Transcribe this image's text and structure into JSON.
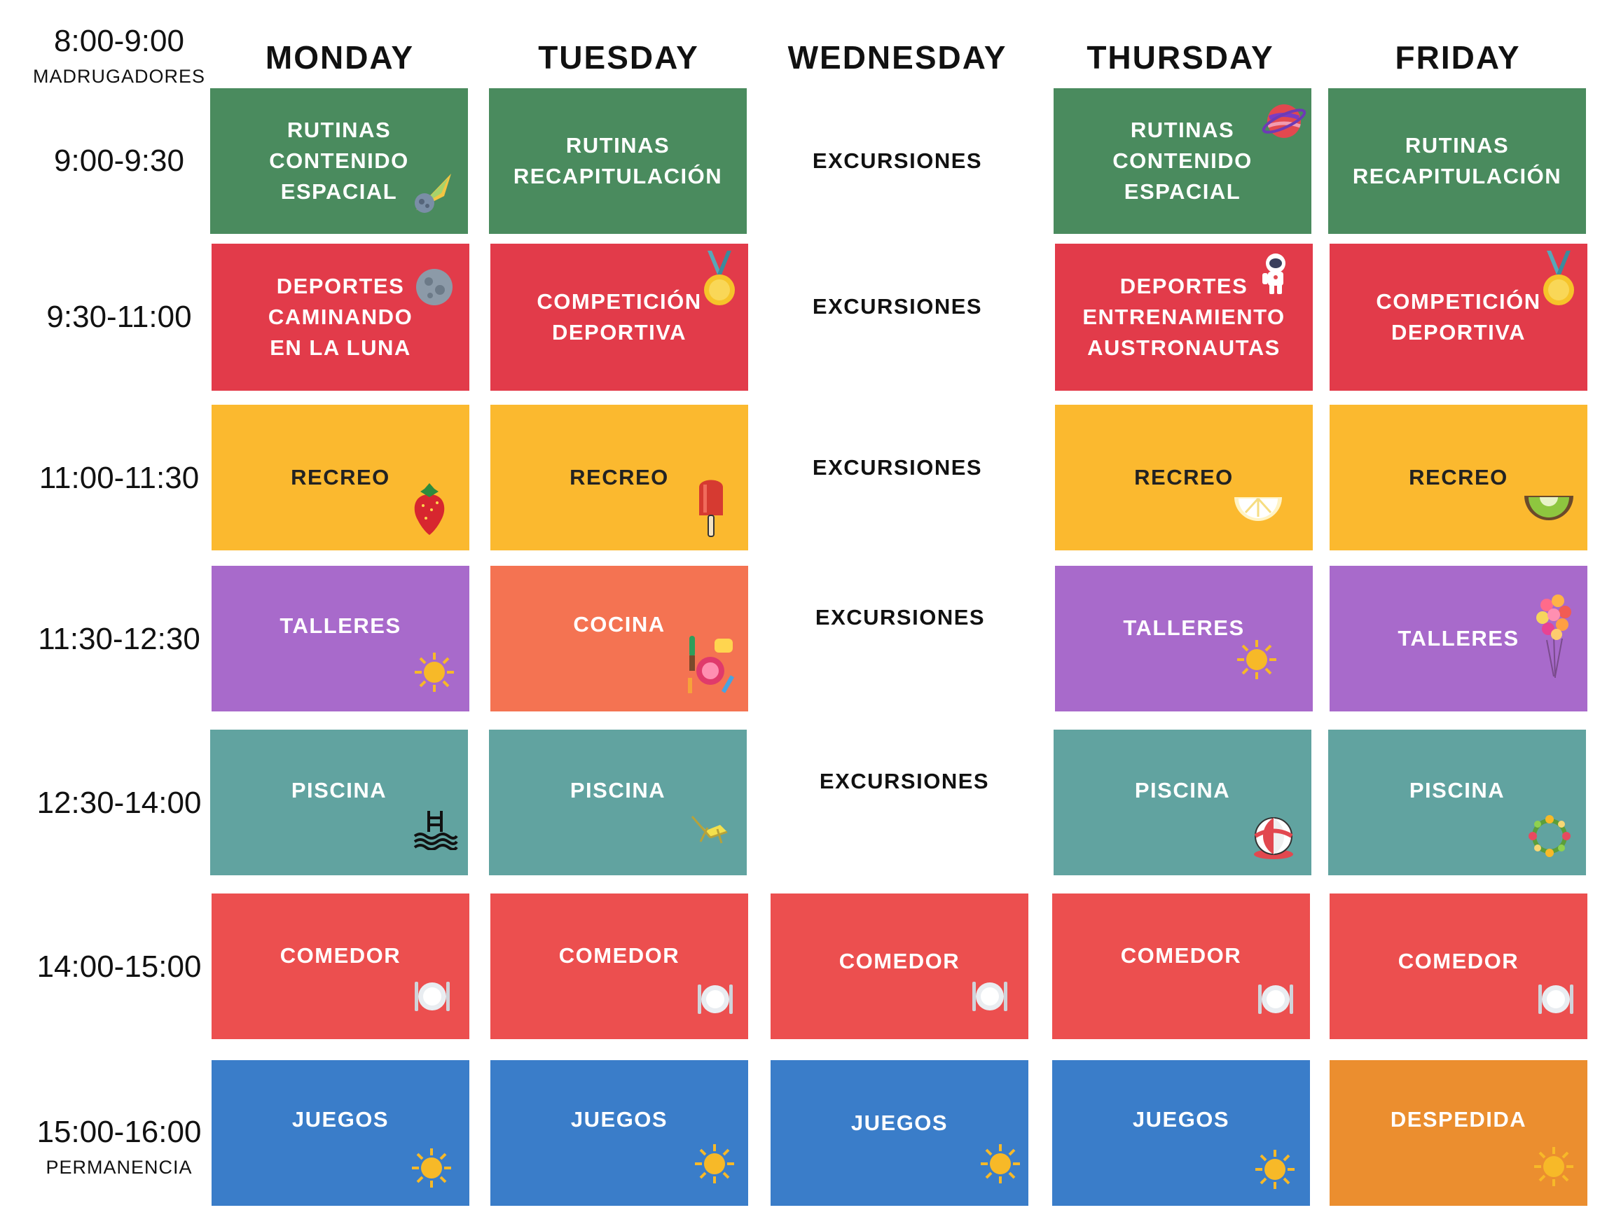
{
  "header": {
    "early_time": "8:00-9:00",
    "early_label": "MADRUGADORES",
    "days": [
      "MONDAY",
      "TUESDAY",
      "WEDNESDAY",
      "THURSDAY",
      "FRIDAY"
    ]
  },
  "times": [
    {
      "time": "9:00-9:30",
      "sub": ""
    },
    {
      "time": "9:30-11:00",
      "sub": ""
    },
    {
      "time": "11:00-11:30",
      "sub": ""
    },
    {
      "time": "11:30-12:30",
      "sub": ""
    },
    {
      "time": "12:30-14:00",
      "sub": ""
    },
    {
      "time": "14:00-15:00",
      "sub": ""
    },
    {
      "time": "15:00-16:00",
      "sub": "PERMANENCIA"
    }
  ],
  "rows": [
    [
      {
        "text": "RUTINAS\nCONTENIDO\nESPACIAL",
        "icon": "comet-icon"
      },
      {
        "text": "RUTINAS\nRECAPITULACIÓN",
        "icon": ""
      },
      {
        "text": "EXCURSIONES",
        "icon": ""
      },
      {
        "text": "RUTINAS\nCONTENIDO\nESPACIAL",
        "icon": "planet-icon"
      },
      {
        "text": "RUTINAS\nRECAPITULACIÓN",
        "icon": ""
      }
    ],
    [
      {
        "text": "DEPORTES\nCAMINANDO\nEN LA LUNA",
        "icon": "moon-icon"
      },
      {
        "text": "COMPETICIÓN\nDEPORTIVA",
        "icon": "medal-icon"
      },
      {
        "text": "EXCURSIONES",
        "icon": ""
      },
      {
        "text": "DEPORTES\nENTRENAMIENTO\nAUSTRONAUTAS",
        "icon": "astronaut-icon"
      },
      {
        "text": "COMPETICIÓN\nDEPORTIVA",
        "icon": "medal-icon"
      }
    ],
    [
      {
        "text": "RECREO",
        "icon": "strawberry-icon"
      },
      {
        "text": "RECREO",
        "icon": "popsicle-icon"
      },
      {
        "text": "EXCURSIONES",
        "icon": ""
      },
      {
        "text": "RECREO",
        "icon": "lemon-slice-icon"
      },
      {
        "text": "RECREO",
        "icon": "kiwi-slice-icon"
      }
    ],
    [
      {
        "text": "TALLERES",
        "icon": "sun-icon"
      },
      {
        "text": "COCINA",
        "icon": "kitchen-utensils-icon"
      },
      {
        "text": "EXCURSIONES",
        "icon": ""
      },
      {
        "text": "TALLERES",
        "icon": "sun-icon"
      },
      {
        "text": "TALLERES",
        "icon": "balloons-icon"
      }
    ],
    [
      {
        "text": "PISCINA",
        "icon": "swimming-pool-icon"
      },
      {
        "text": "PISCINA",
        "icon": "deck-chair-icon"
      },
      {
        "text": "EXCURSIONES",
        "icon": ""
      },
      {
        "text": "PISCINA",
        "icon": "beach-ball-icon"
      },
      {
        "text": "PISCINA",
        "icon": "flower-wreath-icon"
      }
    ],
    [
      {
        "text": "COMEDOR",
        "icon": "plate-icon"
      },
      {
        "text": "COMEDOR",
        "icon": "plate-icon"
      },
      {
        "text": "COMEDOR",
        "icon": "plate-icon"
      },
      {
        "text": "COMEDOR",
        "icon": "plate-icon"
      },
      {
        "text": "COMEDOR",
        "icon": "plate-icon"
      }
    ],
    [
      {
        "text": "JUEGOS",
        "icon": "sun-icon"
      },
      {
        "text": "JUEGOS",
        "icon": "sun-icon"
      },
      {
        "text": "JUEGOS",
        "icon": "sun-icon"
      },
      {
        "text": "JUEGOS",
        "icon": "sun-icon"
      },
      {
        "text": "DESPEDIDA",
        "icon": "sun-icon"
      }
    ]
  ],
  "colors": {
    "green": "#4a8b5e",
    "red": "#e23b4a",
    "yellow": "#fbb92f",
    "purple": "#a86acb",
    "orange": "#f47352",
    "teal": "#61a3a0",
    "blue": "#3a7dc9",
    "amber": "#eb8e2f"
  }
}
